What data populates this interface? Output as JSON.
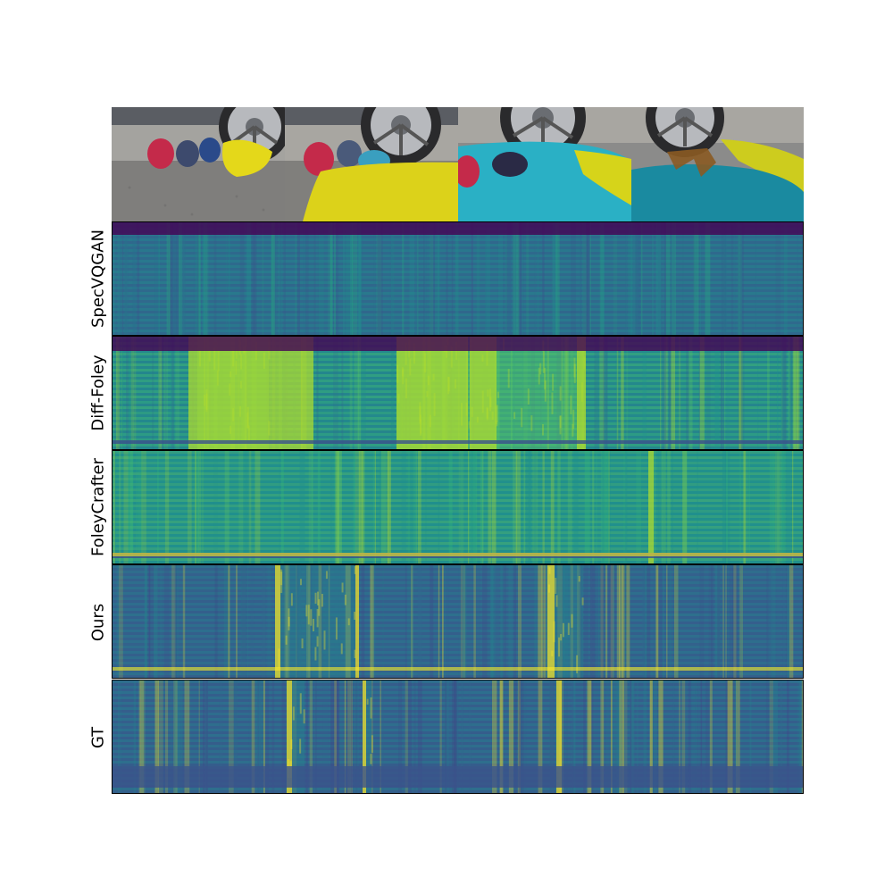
{
  "video_frames": {
    "count": 4,
    "scene": [
      "balloons",
      "yellow-splash",
      "blue-splash",
      "tire-burst"
    ]
  },
  "rows": [
    {
      "label": "SpecVQGAN",
      "texture": "uniform",
      "palette": [
        "#3b528b",
        "#2c718e",
        "#21908d",
        "#27ad81"
      ]
    },
    {
      "label": "Diff-Foley",
      "texture": "bands",
      "palette": [
        "#31688e",
        "#21908d",
        "#5ec962",
        "#b5de2b"
      ]
    },
    {
      "label": "FoleyCrafter",
      "texture": "smooth",
      "palette": [
        "#21908d",
        "#35b779",
        "#6ece58",
        "#b5de2b"
      ]
    },
    {
      "label": "Ours",
      "texture": "events",
      "palette": [
        "#3e4a89",
        "#31688e",
        "#26828e",
        "#fde725"
      ]
    },
    {
      "label": "GT",
      "texture": "events",
      "palette": [
        "#414487",
        "#31688e",
        "#26828e",
        "#fde725"
      ]
    }
  ],
  "colormap": [
    "#440154",
    "#3b528b",
    "#21908d",
    "#5ec962",
    "#fde725"
  ]
}
